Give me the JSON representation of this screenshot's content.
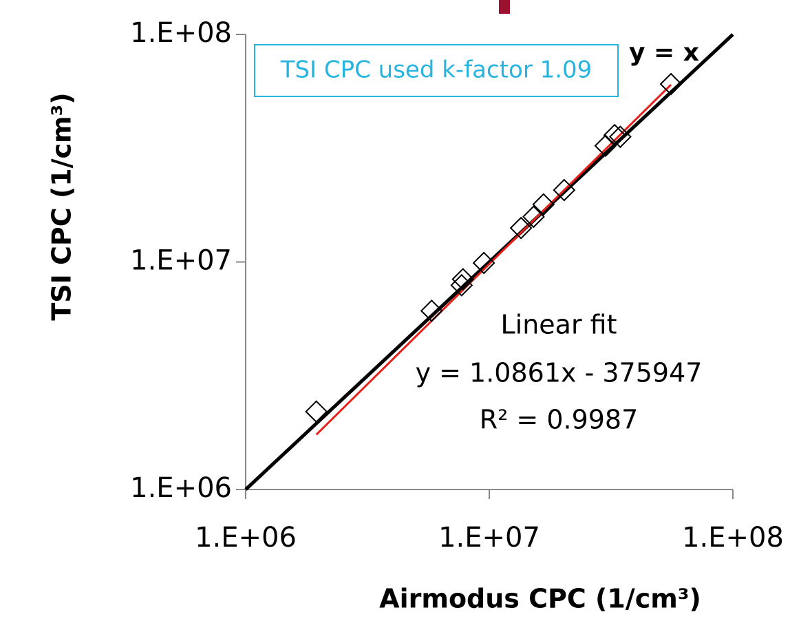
{
  "chart_data": {
    "type": "scatter",
    "x_label": "Airmodus CPC (1/cm³)",
    "y_label": "TSI CPC (1/cm³)",
    "annotation_box": "TSI CPC used k-factor 1.09",
    "identity_label": "y = x",
    "fit": {
      "title": "Linear fit",
      "equation": "y = 1.0861x - 375947",
      "r2": "R² = 0.9987",
      "slope": 1.0861,
      "intercept": -375947,
      "color": "#e8201a"
    },
    "log_x": true,
    "log_y": true,
    "xlim": [
      1000000,
      100000000
    ],
    "ylim": [
      1000000,
      100000000
    ],
    "xticks": [
      {
        "value": 1000000,
        "label": "1.E+06"
      },
      {
        "value": 10000000,
        "label": "1.E+07"
      },
      {
        "value": 100000000,
        "label": "1.E+08"
      }
    ],
    "yticks": [
      {
        "value": 1000000,
        "label": "1.E+06"
      },
      {
        "value": 10000000,
        "label": "1.E+07"
      },
      {
        "value": 100000000,
        "label": "1.E+08"
      }
    ],
    "series": [
      {
        "color": "#000000",
        "x": [
          1950000,
          5800000,
          7700000,
          7800000,
          9500000,
          13500000,
          15200000,
          16700000,
          20300000,
          30000000,
          32700000,
          34500000,
          55700000
        ],
        "values": [
          2200000,
          6100000,
          7900000,
          8400000,
          9900000,
          14100000,
          15800000,
          17900000,
          20700000,
          32400000,
          36100000,
          35500000,
          60500000
        ]
      }
    ]
  }
}
